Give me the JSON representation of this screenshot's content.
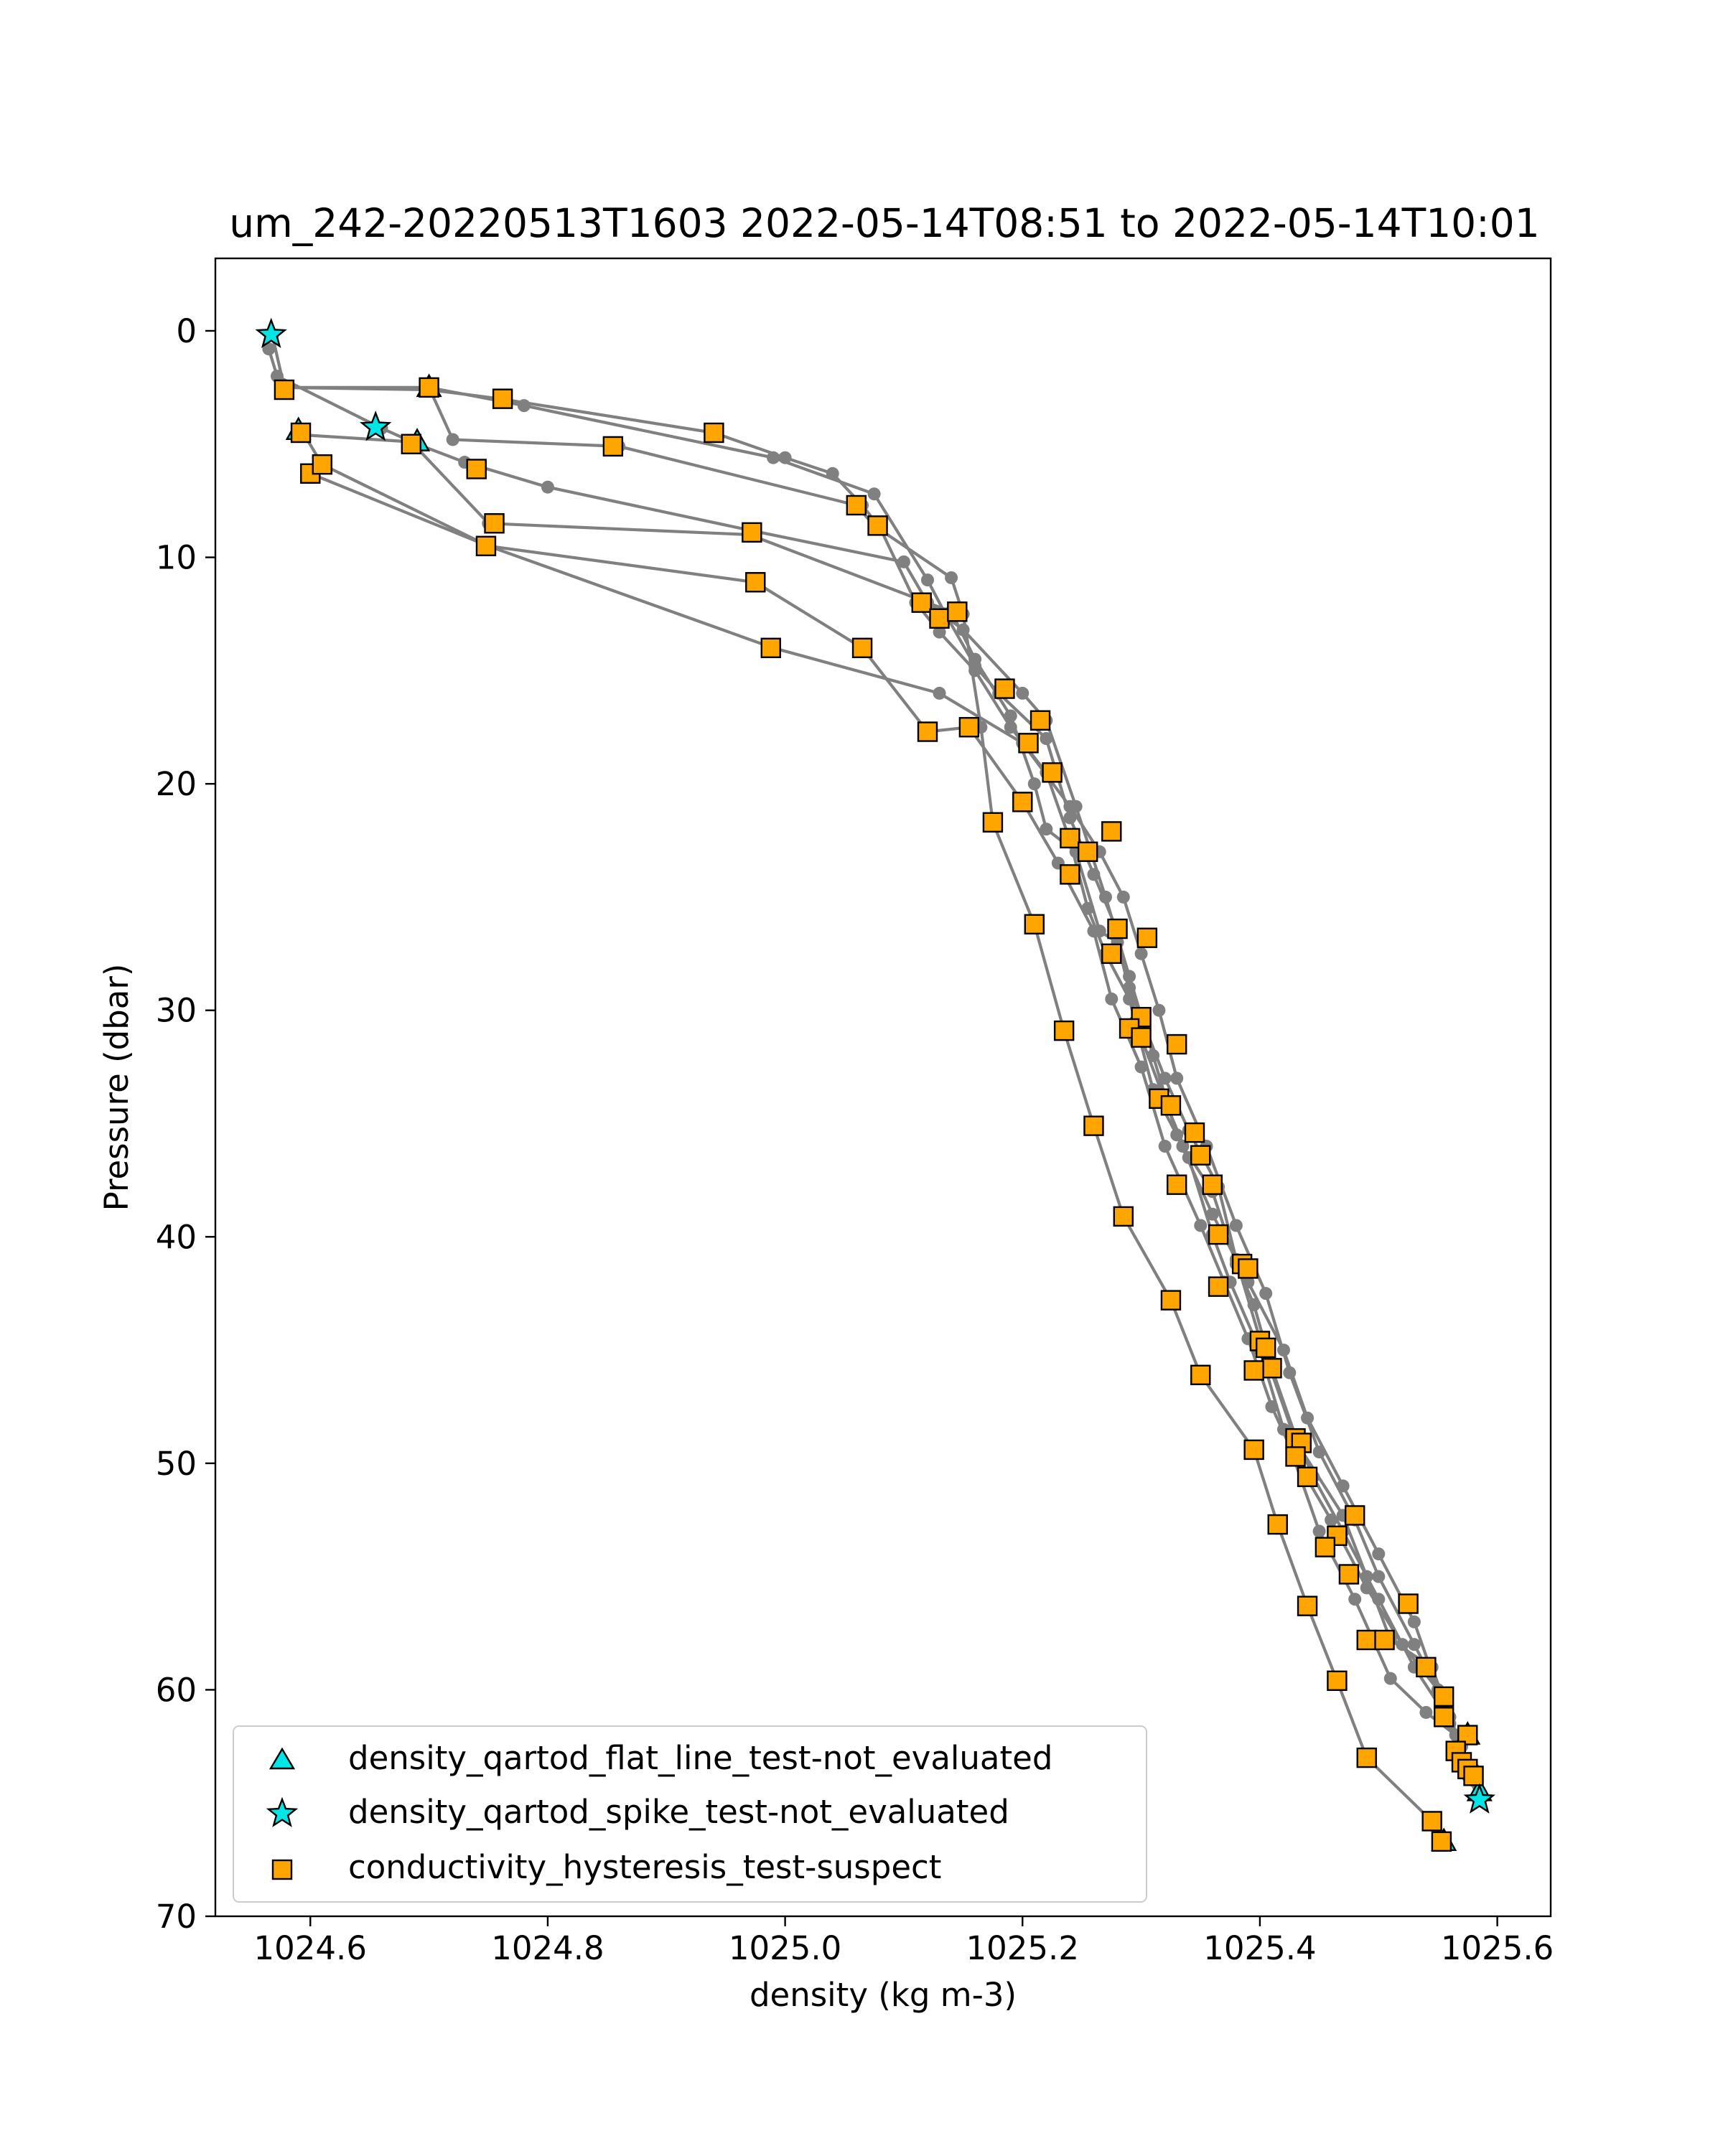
{
  "chart_data": {
    "type": "scatter",
    "title": "um_242-20220513T1603 2022-05-14T08:51 to 2022-05-14T10:01",
    "xlabel": "density (kg m-3)",
    "ylabel": "Pressure (dbar)",
    "xlim": [
      1024.52,
      1025.645
    ],
    "ylim": [
      70,
      -3.2
    ],
    "y_inverted": true,
    "xticks": [
      1024.6,
      1024.8,
      1025.0,
      1025.2,
      1025.4,
      1025.6
    ],
    "xtick_labels": [
      "1024.6",
      "1024.8",
      "1025.0",
      "1025.2",
      "1025.4",
      "1025.6"
    ],
    "yticks": [
      0,
      10,
      20,
      30,
      40,
      50,
      60,
      70
    ],
    "ytick_labels": [
      "0",
      "10",
      "20",
      "30",
      "40",
      "50",
      "60",
      "70"
    ],
    "grid": false,
    "legend_position": "lower-left",
    "colors": {
      "profile_line": "#808080",
      "flat_line": "#00e5e5",
      "spike": "#00e5e5",
      "hysteresis": "#ffa500",
      "marker_edge": "#000000"
    },
    "profiles": [
      {
        "points": [
          [
            1024.565,
            0.8
          ],
          [
            1024.572,
            2.0
          ],
          [
            1024.66,
            4.3
          ],
          [
            1024.69,
            5.0
          ],
          [
            1024.73,
            5.8
          ],
          [
            1024.8,
            6.9
          ],
          [
            1024.97,
            8.8
          ],
          [
            1025.1,
            10.2
          ],
          [
            1025.12,
            12.0
          ],
          [
            1025.15,
            13.2
          ],
          [
            1025.2,
            16.0
          ],
          [
            1025.22,
            17.2
          ],
          [
            1025.245,
            21.0
          ],
          [
            1025.27,
            25.0
          ],
          [
            1025.29,
            28.5
          ],
          [
            1025.31,
            32.0
          ],
          [
            1025.33,
            35.5
          ],
          [
            1025.36,
            39.0
          ],
          [
            1025.39,
            42.0
          ],
          [
            1025.42,
            45.0
          ],
          [
            1025.44,
            48.0
          ],
          [
            1025.47,
            51.0
          ],
          [
            1025.5,
            54.0
          ],
          [
            1025.53,
            57.0
          ],
          [
            1025.55,
            60.0
          ],
          [
            1025.565,
            62.0
          ],
          [
            1025.575,
            63.8
          ],
          [
            1025.585,
            64.8
          ]
        ]
      },
      {
        "points": [
          [
            1024.568,
            0.2
          ],
          [
            1024.578,
            2.5
          ],
          [
            1024.7,
            2.6
          ],
          [
            1024.76,
            3.0
          ],
          [
            1024.94,
            4.5
          ],
          [
            1025.0,
            5.6
          ],
          [
            1025.04,
            6.3
          ],
          [
            1025.065,
            7.7
          ],
          [
            1025.08,
            8.7
          ],
          [
            1025.11,
            12.0
          ],
          [
            1025.13,
            13.3
          ],
          [
            1025.16,
            15.0
          ],
          [
            1025.19,
            17.5
          ],
          [
            1025.22,
            19.5
          ],
          [
            1025.24,
            22.5
          ],
          [
            1025.255,
            25.5
          ],
          [
            1025.27,
            27.5
          ],
          [
            1025.29,
            29.5
          ],
          [
            1025.295,
            30.5
          ],
          [
            1025.31,
            33.5
          ],
          [
            1025.335,
            36.0
          ],
          [
            1025.36,
            38.0
          ],
          [
            1025.38,
            41.2
          ],
          [
            1025.395,
            43.0
          ],
          [
            1025.41,
            45.8
          ],
          [
            1025.43,
            48.8
          ],
          [
            1025.445,
            50.6
          ],
          [
            1025.47,
            53.0
          ],
          [
            1025.5,
            56.0
          ],
          [
            1025.53,
            59.0
          ],
          [
            1025.555,
            61.0
          ],
          [
            1025.57,
            63.0
          ],
          [
            1025.58,
            64.0
          ]
        ]
      },
      {
        "points": [
          [
            1024.578,
            2.5
          ],
          [
            1024.7,
            2.5
          ],
          [
            1024.78,
            3.3
          ],
          [
            1024.99,
            5.6
          ],
          [
            1025.075,
            7.2
          ],
          [
            1025.12,
            11.0
          ],
          [
            1025.135,
            12.5
          ],
          [
            1025.16,
            14.8
          ],
          [
            1025.18,
            16.0
          ],
          [
            1025.22,
            18.0
          ],
          [
            1025.24,
            21.5
          ],
          [
            1025.26,
            24.0
          ],
          [
            1025.28,
            26.5
          ],
          [
            1025.29,
            29.0
          ],
          [
            1025.3,
            30.3
          ],
          [
            1025.32,
            33.0
          ],
          [
            1025.34,
            35.3
          ],
          [
            1025.365,
            37.8
          ],
          [
            1025.38,
            41.0
          ],
          [
            1025.4,
            44.5
          ],
          [
            1025.43,
            49.0
          ],
          [
            1025.47,
            52.3
          ],
          [
            1025.49,
            55.0
          ],
          [
            1025.51,
            57.8
          ],
          [
            1025.545,
            59.0
          ],
          [
            1025.56,
            61.2
          ],
          [
            1025.57,
            62.5
          ],
          [
            1025.575,
            63.5
          ]
        ]
      },
      {
        "points": [
          [
            1024.59,
            4.4
          ],
          [
            1024.595,
            4.6
          ],
          [
            1024.685,
            4.9
          ],
          [
            1024.75,
            8.5
          ],
          [
            1024.97,
            9.0
          ],
          [
            1025.14,
            12.4
          ],
          [
            1025.16,
            14.5
          ],
          [
            1025.19,
            17.0
          ],
          [
            1025.21,
            20.0
          ],
          [
            1025.22,
            22.0
          ],
          [
            1025.245,
            23.0
          ],
          [
            1025.265,
            26.5
          ],
          [
            1025.28,
            27.0
          ],
          [
            1025.3,
            31.2
          ],
          [
            1025.32,
            34.0
          ],
          [
            1025.34,
            36.5
          ],
          [
            1025.36,
            39.9
          ],
          [
            1025.375,
            42.0
          ],
          [
            1025.4,
            45.0
          ],
          [
            1025.42,
            48.5
          ],
          [
            1025.45,
            53.0
          ],
          [
            1025.48,
            56.0
          ],
          [
            1025.51,
            59.5
          ],
          [
            1025.54,
            61.0
          ],
          [
            1025.565,
            62.0
          ]
        ]
      },
      {
        "points": [
          [
            1024.595,
            4.6
          ],
          [
            1024.61,
            5.9
          ],
          [
            1024.75,
            9.5
          ],
          [
            1024.975,
            11.1
          ],
          [
            1025.065,
            14.0
          ],
          [
            1025.12,
            17.7
          ],
          [
            1025.155,
            17.5
          ],
          [
            1025.2,
            20.8
          ],
          [
            1025.23,
            23.5
          ],
          [
            1025.26,
            26.5
          ],
          [
            1025.275,
            29.5
          ],
          [
            1025.3,
            32.5
          ],
          [
            1025.32,
            36.0
          ],
          [
            1025.35,
            39.5
          ],
          [
            1025.37,
            42.0
          ],
          [
            1025.39,
            44.5
          ],
          [
            1025.41,
            47.5
          ],
          [
            1025.43,
            49.8
          ],
          [
            1025.46,
            52.5
          ],
          [
            1025.49,
            55.5
          ],
          [
            1025.52,
            58.0
          ],
          [
            1025.55,
            60.0
          ],
          [
            1025.56,
            61.5
          ]
        ]
      },
      {
        "points": [
          [
            1024.6,
            6.3
          ],
          [
            1024.75,
            9.5
          ],
          [
            1024.99,
            14.0
          ],
          [
            1025.13,
            16.0
          ],
          [
            1025.2,
            18.2
          ],
          [
            1025.24,
            21.0
          ],
          [
            1025.265,
            23.0
          ],
          [
            1025.285,
            25.0
          ],
          [
            1025.3,
            27.5
          ],
          [
            1025.315,
            30.0
          ],
          [
            1025.33,
            33.0
          ],
          [
            1025.355,
            36.0
          ],
          [
            1025.38,
            39.5
          ],
          [
            1025.405,
            42.5
          ],
          [
            1025.425,
            46.0
          ],
          [
            1025.45,
            49.5
          ],
          [
            1025.48,
            52.5
          ],
          [
            1025.5,
            55.0
          ],
          [
            1025.53,
            58.0
          ],
          [
            1025.555,
            60.5
          ],
          [
            1025.565,
            62.5
          ],
          [
            1025.58,
            63.5
          ]
        ]
      },
      {
        "points": [
          [
            1024.7,
            2.5
          ],
          [
            1024.72,
            4.8
          ],
          [
            1024.86,
            5.1
          ],
          [
            1025.06,
            7.7
          ],
          [
            1025.075,
            8.6
          ],
          [
            1025.14,
            10.9
          ],
          [
            1025.15,
            12.5
          ],
          [
            1025.165,
            17.5
          ],
          [
            1025.175,
            21.7
          ],
          [
            1025.21,
            26.2
          ],
          [
            1025.235,
            30.9
          ],
          [
            1025.26,
            35.1
          ],
          [
            1025.285,
            39.1
          ],
          [
            1025.325,
            42.8
          ],
          [
            1025.35,
            46.1
          ],
          [
            1025.395,
            49.4
          ],
          [
            1025.415,
            52.7
          ],
          [
            1025.44,
            56.3
          ],
          [
            1025.465,
            59.6
          ],
          [
            1025.49,
            63.0
          ],
          [
            1025.545,
            65.8
          ],
          [
            1025.555,
            66.7
          ]
        ]
      }
    ],
    "series": [
      {
        "name": "density_qartod_flat_line_test-not_evaluated",
        "marker": "triangle",
        "color": "#00e5e5",
        "points": [
          [
            1024.7,
            2.5
          ],
          [
            1024.59,
            4.4
          ],
          [
            1024.69,
            4.9
          ],
          [
            1025.575,
            62.0
          ],
          [
            1025.585,
            64.5
          ],
          [
            1025.555,
            66.7
          ]
        ]
      },
      {
        "name": "density_qartod_spike_test-not_evaluated",
        "marker": "star",
        "color": "#00e5e5",
        "points": [
          [
            1024.567,
            0.1
          ],
          [
            1024.655,
            4.2
          ],
          [
            1025.585,
            64.8
          ]
        ]
      },
      {
        "name": "conductivity_hysteresis_test-suspect",
        "marker": "square",
        "color": "#ffa500",
        "points": [
          [
            1024.578,
            2.6
          ],
          [
            1024.7,
            2.5
          ],
          [
            1024.762,
            3.0
          ],
          [
            1024.94,
            4.5
          ],
          [
            1024.592,
            4.5
          ],
          [
            1024.685,
            5.0
          ],
          [
            1024.855,
            5.1
          ],
          [
            1024.6,
            6.3
          ],
          [
            1024.61,
            5.9
          ],
          [
            1024.74,
            6.1
          ],
          [
            1025.06,
            7.7
          ],
          [
            1025.078,
            8.6
          ],
          [
            1024.755,
            8.5
          ],
          [
            1024.972,
            8.9
          ],
          [
            1024.748,
            9.5
          ],
          [
            1024.975,
            11.1
          ],
          [
            1025.115,
            12.0
          ],
          [
            1025.13,
            12.7
          ],
          [
            1025.145,
            12.4
          ],
          [
            1024.988,
            14.0
          ],
          [
            1025.065,
            14.0
          ],
          [
            1025.185,
            15.8
          ],
          [
            1025.215,
            17.2
          ],
          [
            1025.12,
            17.7
          ],
          [
            1025.155,
            17.5
          ],
          [
            1025.205,
            18.2
          ],
          [
            1025.225,
            19.5
          ],
          [
            1025.2,
            20.8
          ],
          [
            1025.175,
            21.7
          ],
          [
            1025.275,
            22.1
          ],
          [
            1025.24,
            22.4
          ],
          [
            1025.255,
            23.0
          ],
          [
            1025.24,
            24.0
          ],
          [
            1025.28,
            26.4
          ],
          [
            1025.21,
            26.2
          ],
          [
            1025.305,
            26.8
          ],
          [
            1025.275,
            27.5
          ],
          [
            1025.3,
            30.3
          ],
          [
            1025.29,
            30.8
          ],
          [
            1025.3,
            31.2
          ],
          [
            1025.235,
            30.9
          ],
          [
            1025.33,
            31.5
          ],
          [
            1025.315,
            33.9
          ],
          [
            1025.325,
            34.2
          ],
          [
            1025.345,
            35.4
          ],
          [
            1025.26,
            35.1
          ],
          [
            1025.35,
            36.4
          ],
          [
            1025.36,
            37.7
          ],
          [
            1025.33,
            37.7
          ],
          [
            1025.365,
            39.9
          ],
          [
            1025.285,
            39.1
          ],
          [
            1025.385,
            41.2
          ],
          [
            1025.39,
            41.4
          ],
          [
            1025.365,
            42.2
          ],
          [
            1025.325,
            42.8
          ],
          [
            1025.4,
            44.6
          ],
          [
            1025.405,
            44.9
          ],
          [
            1025.41,
            45.8
          ],
          [
            1025.395,
            45.9
          ],
          [
            1025.35,
            46.1
          ],
          [
            1025.43,
            48.9
          ],
          [
            1025.435,
            49.1
          ],
          [
            1025.43,
            49.7
          ],
          [
            1025.395,
            49.4
          ],
          [
            1025.44,
            50.6
          ],
          [
            1025.48,
            52.3
          ],
          [
            1025.415,
            52.7
          ],
          [
            1025.465,
            53.2
          ],
          [
            1025.455,
            53.7
          ],
          [
            1025.475,
            54.9
          ],
          [
            1025.525,
            56.2
          ],
          [
            1025.44,
            56.3
          ],
          [
            1025.49,
            57.8
          ],
          [
            1025.505,
            57.8
          ],
          [
            1025.54,
            59.0
          ],
          [
            1025.465,
            59.6
          ],
          [
            1025.555,
            60.3
          ],
          [
            1025.575,
            62.0
          ],
          [
            1025.555,
            61.2
          ],
          [
            1025.565,
            62.7
          ],
          [
            1025.57,
            63.2
          ],
          [
            1025.575,
            63.5
          ],
          [
            1025.58,
            63.8
          ],
          [
            1025.49,
            63.0
          ],
          [
            1025.545,
            65.8
          ],
          [
            1025.553,
            66.7
          ]
        ]
      }
    ]
  }
}
